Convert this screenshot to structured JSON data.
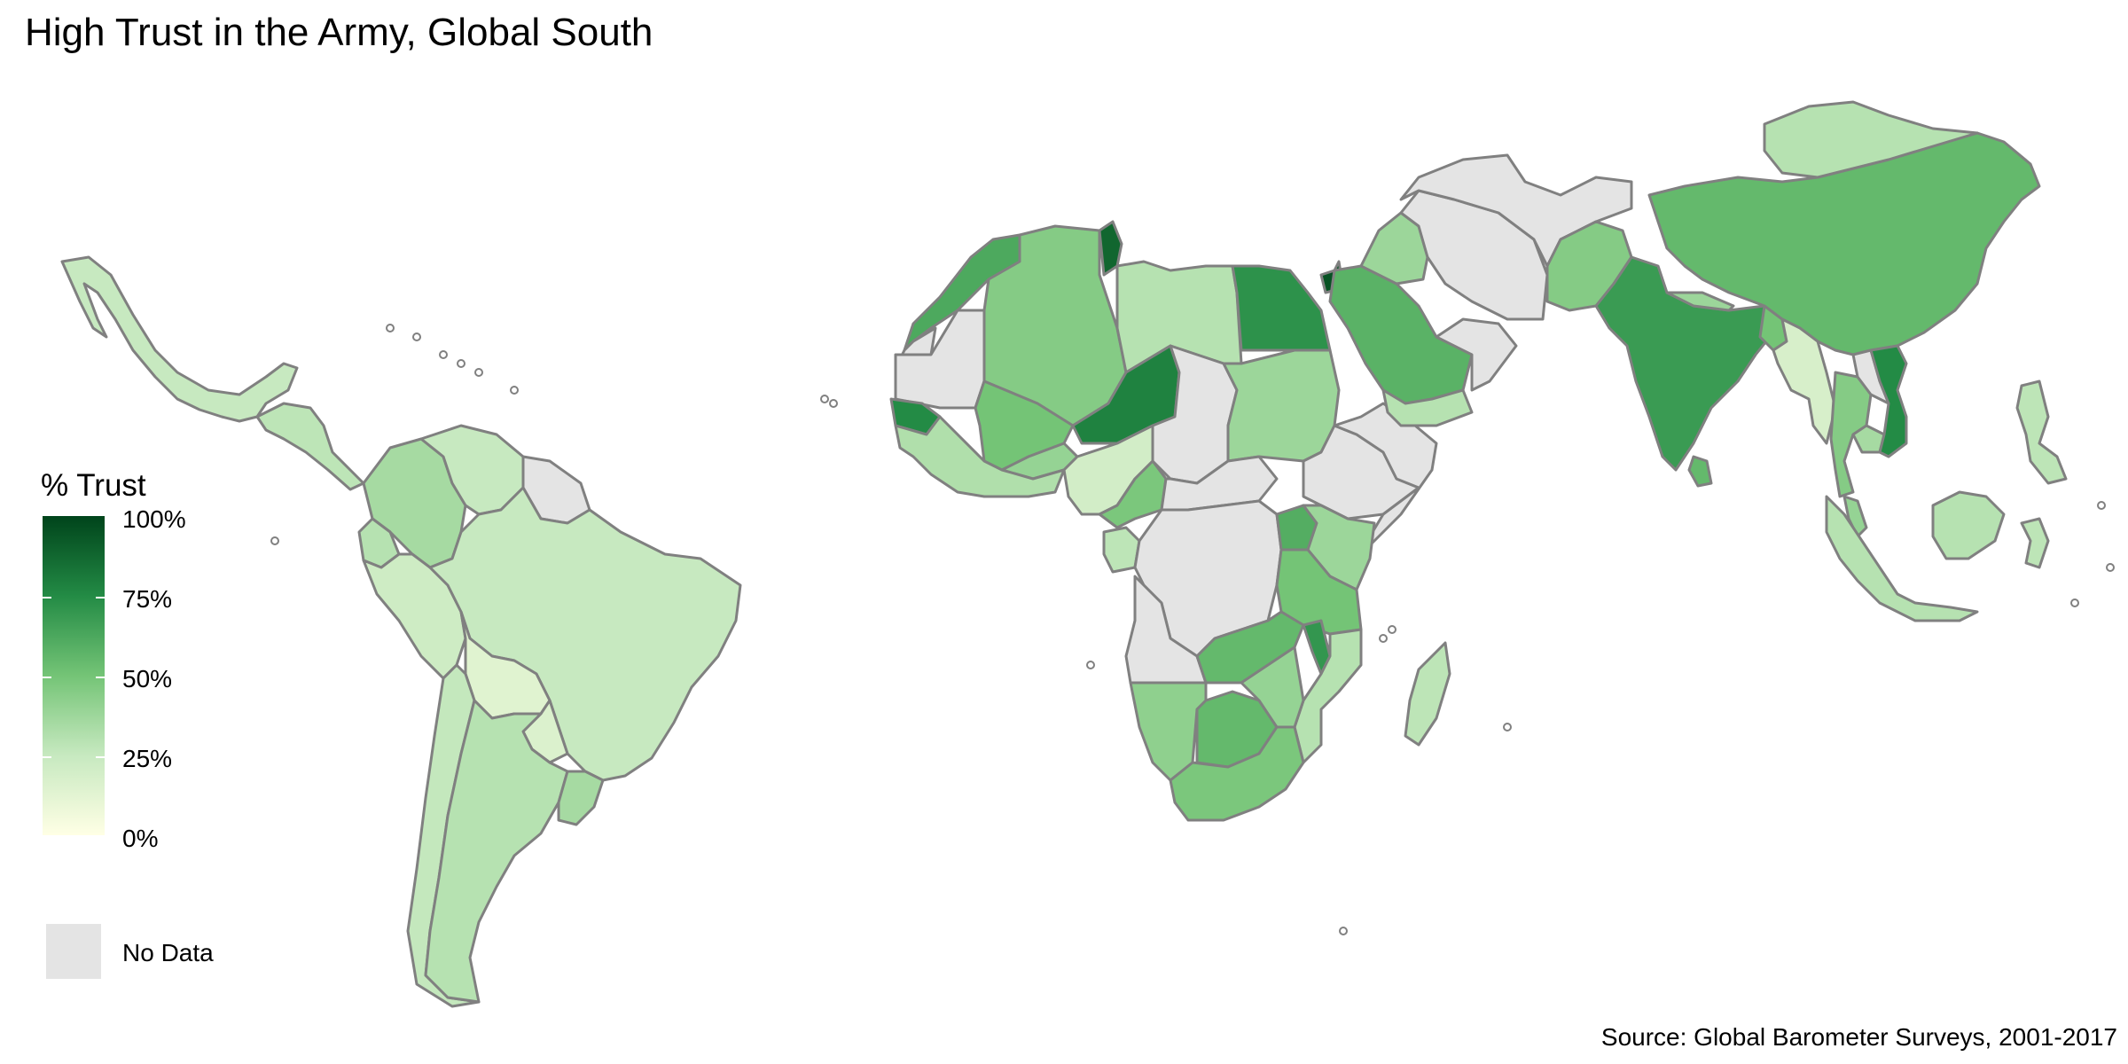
{
  "title": "High Trust in the Army, Global South",
  "legend": {
    "title": "% Trust",
    "ticks": [
      "100%",
      "75%",
      "50%",
      "25%",
      "0%"
    ],
    "no_data_label": "No Data",
    "scale_min_color": "#ffffe5",
    "scale_max_color": "#00441b",
    "no_data_color": "#e4e4e4"
  },
  "caption": "Source: Global Barometer Surveys, 2001-2017",
  "border_color": "#808080",
  "regions": [
    {
      "name": "Mexico",
      "value": 25
    },
    {
      "name": "Central America",
      "value": 28
    },
    {
      "name": "Colombia",
      "value": 35
    },
    {
      "name": "Venezuela",
      "value": 25
    },
    {
      "name": "Guyana/Suriname",
      "value": null
    },
    {
      "name": "Ecuador",
      "value": 30
    },
    {
      "name": "Peru",
      "value": 22
    },
    {
      "name": "Brazil",
      "value": 25
    },
    {
      "name": "Bolivia",
      "value": 14
    },
    {
      "name": "Paraguay",
      "value": 16
    },
    {
      "name": "Chile",
      "value": 26
    },
    {
      "name": "Argentina",
      "value": 30
    },
    {
      "name": "Uruguay",
      "value": 35
    },
    {
      "name": "Morocco",
      "value": 62
    },
    {
      "name": "Western Sahara",
      "value": null
    },
    {
      "name": "Mauritania",
      "value": null
    },
    {
      "name": "Algeria",
      "value": 45
    },
    {
      "name": "Tunisia",
      "value": 88
    },
    {
      "name": "Libya",
      "value": 30
    },
    {
      "name": "Egypt",
      "value": 72
    },
    {
      "name": "Mali",
      "value": 50
    },
    {
      "name": "Niger",
      "value": 78
    },
    {
      "name": "Chad",
      "value": null
    },
    {
      "name": "Sudan",
      "value": 38
    },
    {
      "name": "Senegal",
      "value": 75
    },
    {
      "name": "Burkina Faso",
      "value": 40
    },
    {
      "name": "West Africa Coast",
      "value": 32
    },
    {
      "name": "Nigeria",
      "value": 20
    },
    {
      "name": "Cameroon",
      "value": 48
    },
    {
      "name": "Gabon",
      "value": 28
    },
    {
      "name": "Central Africa",
      "value": null
    },
    {
      "name": "DR Congo",
      "value": null
    },
    {
      "name": "Ethiopia",
      "value": null
    },
    {
      "name": "Somalia/Horn",
      "value": null
    },
    {
      "name": "Uganda",
      "value": 60
    },
    {
      "name": "Kenya",
      "value": 38
    },
    {
      "name": "Tanzania",
      "value": 50
    },
    {
      "name": "Angola",
      "value": null
    },
    {
      "name": "Zambia",
      "value": 55
    },
    {
      "name": "Malawi",
      "value": 70
    },
    {
      "name": "Mozambique",
      "value": 30
    },
    {
      "name": "Namibia",
      "value": 42
    },
    {
      "name": "Botswana",
      "value": 55
    },
    {
      "name": "Zimbabwe",
      "value": 40
    },
    {
      "name": "South Africa",
      "value": 48
    },
    {
      "name": "Madagascar",
      "value": 28
    },
    {
      "name": "Jordan",
      "value": 95
    },
    {
      "name": "Saudi Arabia",
      "value": 58
    },
    {
      "name": "Yemen",
      "value": 30
    },
    {
      "name": "Iraq",
      "value": 38
    },
    {
      "name": "Iran",
      "value": null
    },
    {
      "name": "Gulf States",
      "value": null
    },
    {
      "name": "Central Asia",
      "value": null
    },
    {
      "name": "Pakistan",
      "value": 45
    },
    {
      "name": "India",
      "value": 68
    },
    {
      "name": "Nepal",
      "value": 38
    },
    {
      "name": "Sri Lanka",
      "value": 55
    },
    {
      "name": "Bangladesh",
      "value": 50
    },
    {
      "name": "China",
      "value": 55
    },
    {
      "name": "Mongolia",
      "value": 30
    },
    {
      "name": "Myanmar",
      "value": 18
    },
    {
      "name": "Thailand",
      "value": 45
    },
    {
      "name": "Laos",
      "value": null
    },
    {
      "name": "Cambodia",
      "value": 35
    },
    {
      "name": "Vietnam",
      "value": 75
    },
    {
      "name": "Malaysia",
      "value": 40
    },
    {
      "name": "Indonesia",
      "value": 30
    },
    {
      "name": "Borneo",
      "value": 30
    },
    {
      "name": "Philippines",
      "value": 28
    },
    {
      "name": "Sulawesi",
      "value": 28
    }
  ]
}
